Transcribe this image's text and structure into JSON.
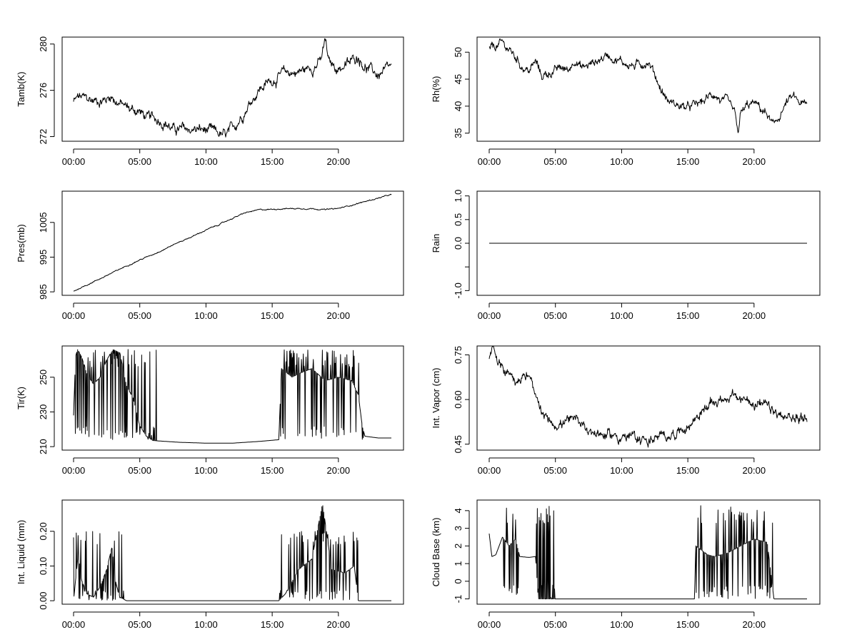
{
  "chart_data": [
    {
      "type": "line",
      "ylabel": "Tamb(K)",
      "xlabel": "",
      "x_unit": "hours",
      "xlim": [
        0,
        24
      ],
      "ylim": [
        271.6,
        280.6
      ],
      "x_ticks": [
        0,
        5,
        10,
        15,
        20
      ],
      "x_tick_labels": [
        "00:00",
        "05:00",
        "10:00",
        "15:00",
        "20:00"
      ],
      "y_ticks": [
        272,
        276,
        280
      ],
      "y_tick_labels": [
        "272",
        "276",
        "280"
      ],
      "keypoints": [
        [
          0,
          275.0
        ],
        [
          0.4,
          275.4
        ],
        [
          1.5,
          275.1
        ],
        [
          2.5,
          275.2
        ],
        [
          2.8,
          275.6
        ],
        [
          3.3,
          275.0
        ],
        [
          4.2,
          274.4
        ],
        [
          5.0,
          274.2
        ],
        [
          5.5,
          273.6
        ],
        [
          6.5,
          273.5
        ],
        [
          7.0,
          273.2
        ],
        [
          7.5,
          272.6
        ],
        [
          8.5,
          272.6
        ],
        [
          9.5,
          272.6
        ],
        [
          10.5,
          272.4
        ],
        [
          11.5,
          272.0
        ],
        [
          12.0,
          272.6
        ],
        [
          12.5,
          273.5
        ],
        [
          13.0,
          274.4
        ],
        [
          13.5,
          275.3
        ],
        [
          14.0,
          276.1
        ],
        [
          15.0,
          276.9
        ],
        [
          16.0,
          277.5
        ],
        [
          17.0,
          277.6
        ],
        [
          18.0,
          278.0
        ],
        [
          18.7,
          278.6
        ],
        [
          19.0,
          280.3
        ],
        [
          19.3,
          278.3
        ],
        [
          20.0,
          277.9
        ],
        [
          20.8,
          278.3
        ],
        [
          21.5,
          279.0
        ],
        [
          22.0,
          278.1
        ],
        [
          23.0,
          277.3
        ],
        [
          23.5,
          277.6
        ],
        [
          24.0,
          277.9
        ]
      ],
      "noise": 0.55
    },
    {
      "type": "line",
      "ylabel": "Rh(%)",
      "xlabel": "",
      "x_unit": "hours",
      "xlim": [
        0,
        24
      ],
      "ylim": [
        33.5,
        52.8
      ],
      "x_ticks": [
        0,
        5,
        10,
        15,
        20
      ],
      "x_tick_labels": [
        "00:00",
        "05:00",
        "10:00",
        "15:00",
        "20:00"
      ],
      "y_ticks": [
        35,
        40,
        45,
        50
      ],
      "y_tick_labels": [
        "35",
        "40",
        "45",
        "50"
      ],
      "keypoints": [
        [
          0,
          50.5
        ],
        [
          1.0,
          51.6
        ],
        [
          1.5,
          50.5
        ],
        [
          2.0,
          49.0
        ],
        [
          2.5,
          47.4
        ],
        [
          3.0,
          46.5
        ],
        [
          3.5,
          48.2
        ],
        [
          4.0,
          45.5
        ],
        [
          4.5,
          46.2
        ],
        [
          5.5,
          47.0
        ],
        [
          6.0,
          46.6
        ],
        [
          6.5,
          49.0
        ],
        [
          7.0,
          47.0
        ],
        [
          8.0,
          48.2
        ],
        [
          9.0,
          49.6
        ],
        [
          10.0,
          48.2
        ],
        [
          11.0,
          47.4
        ],
        [
          12.0,
          48.4
        ],
        [
          12.5,
          46.0
        ],
        [
          13.0,
          43.0
        ],
        [
          13.5,
          41.0
        ],
        [
          14.0,
          40.4
        ],
        [
          15.0,
          39.6
        ],
        [
          16.0,
          40.6
        ],
        [
          17.0,
          42.4
        ],
        [
          17.5,
          41.0
        ],
        [
          18.0,
          40.5
        ],
        [
          18.5,
          38.6
        ],
        [
          18.8,
          35.0
        ],
        [
          19.0,
          38.5
        ],
        [
          19.5,
          40.0
        ],
        [
          20.0,
          40.5
        ],
        [
          20.5,
          39.5
        ],
        [
          21.0,
          38.4
        ],
        [
          21.5,
          36.0
        ],
        [
          22.0,
          38.6
        ],
        [
          22.5,
          40.8
        ],
        [
          23.0,
          41.5
        ],
        [
          23.5,
          40.5
        ],
        [
          24.0,
          40.0
        ]
      ],
      "noise": 1.0
    },
    {
      "type": "line",
      "ylabel": "Pres(mb)",
      "xlabel": "",
      "x_unit": "hours",
      "xlim": [
        0,
        24
      ],
      "ylim": [
        984,
        1014
      ],
      "x_ticks": [
        0,
        5,
        10,
        15,
        20
      ],
      "x_tick_labels": [
        "00:00",
        "05:00",
        "10:00",
        "15:00",
        "20:00"
      ],
      "y_ticks": [
        985,
        995,
        1005
      ],
      "y_tick_labels": [
        "985",
        "995",
        "1005"
      ],
      "keypoints": [
        [
          0,
          985.2
        ],
        [
          1.0,
          987.0
        ],
        [
          2.0,
          988.8
        ],
        [
          3.0,
          990.6
        ],
        [
          4.0,
          992.5
        ],
        [
          5.0,
          994.2
        ],
        [
          6.0,
          995.8
        ],
        [
          7.0,
          997.6
        ],
        [
          8.0,
          999.4
        ],
        [
          9.0,
          1001.0
        ],
        [
          10.0,
          1002.8
        ],
        [
          11.0,
          1004.4
        ],
        [
          12.0,
          1006.2
        ],
        [
          13.0,
          1007.8
        ],
        [
          14.0,
          1008.6
        ],
        [
          15.0,
          1008.8
        ],
        [
          16.0,
          1009.0
        ],
        [
          17.0,
          1009.0
        ],
        [
          18.0,
          1009.0
        ],
        [
          19.0,
          1008.7
        ],
        [
          20.0,
          1009.0
        ],
        [
          21.0,
          1010.0
        ],
        [
          22.0,
          1011.0
        ],
        [
          23.0,
          1012.0
        ],
        [
          24.0,
          1013.0
        ]
      ],
      "noise": 0.2
    },
    {
      "type": "line",
      "ylabel": "Rain",
      "xlabel": "",
      "x_unit": "hours",
      "xlim": [
        0,
        24
      ],
      "ylim": [
        -1.1,
        1.1
      ],
      "x_ticks": [
        0,
        5,
        10,
        15,
        20
      ],
      "x_tick_labels": [
        "00:00",
        "05:00",
        "10:00",
        "15:00",
        "20:00"
      ],
      "y_ticks": [
        -1.0,
        -0.5,
        0.0,
        0.5,
        1.0
      ],
      "y_tick_labels": [
        "-1.0",
        "",
        "0.0",
        "0.5",
        "1.0"
      ],
      "keypoints": [
        [
          0,
          0
        ],
        [
          24,
          0
        ]
      ],
      "noise": 0
    },
    {
      "type": "line",
      "ylabel": "Tir(K)",
      "xlabel": "",
      "x_unit": "hours",
      "xlim": [
        0,
        24
      ],
      "ylim": [
        208,
        268
      ],
      "x_ticks": [
        0,
        5,
        10,
        15,
        20
      ],
      "x_tick_labels": [
        "00:00",
        "05:00",
        "10:00",
        "15:00",
        "20:00"
      ],
      "y_ticks": [
        210,
        230,
        250
      ],
      "y_tick_labels": [
        "210",
        "230",
        "250"
      ],
      "keypoints": [
        [
          0,
          228
        ],
        [
          0.15,
          262
        ],
        [
          0.3,
          266
        ],
        [
          0.6,
          262
        ],
        [
          1.0,
          252
        ],
        [
          1.5,
          246
        ],
        [
          2.0,
          250
        ],
        [
          2.5,
          260
        ],
        [
          3.0,
          266
        ],
        [
          3.5,
          264
        ],
        [
          4.0,
          245
        ],
        [
          4.5,
          238
        ],
        [
          5.0,
          222
        ],
        [
          5.5,
          216
        ],
        [
          6.0,
          213.5
        ],
        [
          7.0,
          213
        ],
        [
          8.0,
          212.5
        ],
        [
          10.0,
          212
        ],
        [
          12.0,
          212
        ],
        [
          14.0,
          213
        ],
        [
          15.5,
          214
        ],
        [
          15.7,
          255
        ],
        [
          16.5,
          250
        ],
        [
          17.0,
          252
        ],
        [
          18.0,
          255
        ],
        [
          19.0,
          248
        ],
        [
          20.0,
          250
        ],
        [
          21.0,
          248
        ],
        [
          21.5,
          240
        ],
        [
          21.8,
          222
        ],
        [
          22.0,
          216
        ],
        [
          23.0,
          215
        ],
        [
          24.0,
          215
        ]
      ],
      "noise": 0,
      "spiky": {
        "low": 214,
        "high": 266,
        "windows": [
          [
            0.1,
            6.5
          ],
          [
            15.6,
            21.9
          ]
        ]
      }
    },
    {
      "type": "line",
      "ylabel": "Int. Vapor (cm)",
      "xlabel": "",
      "x_unit": "hours",
      "xlim": [
        0,
        24
      ],
      "ylim": [
        0.43,
        0.78
      ],
      "x_ticks": [
        0,
        5,
        10,
        15,
        20
      ],
      "x_tick_labels": [
        "00:00",
        "05:00",
        "10:00",
        "15:00",
        "20:00"
      ],
      "y_ticks": [
        0.45,
        0.6,
        0.75
      ],
      "y_tick_labels": [
        "0.45",
        "0.60",
        "0.75"
      ],
      "keypoints": [
        [
          0,
          0.74
        ],
        [
          0.3,
          0.77
        ],
        [
          0.8,
          0.71
        ],
        [
          1.5,
          0.69
        ],
        [
          2.0,
          0.67
        ],
        [
          2.5,
          0.68
        ],
        [
          3.0,
          0.68
        ],
        [
          3.5,
          0.6
        ],
        [
          4.0,
          0.54
        ],
        [
          5.0,
          0.52
        ],
        [
          6.0,
          0.525
        ],
        [
          7.0,
          0.52
        ],
        [
          8.0,
          0.49
        ],
        [
          9.0,
          0.48
        ],
        [
          10.0,
          0.475
        ],
        [
          11.0,
          0.47
        ],
        [
          12.0,
          0.465
        ],
        [
          13.0,
          0.47
        ],
        [
          14.0,
          0.49
        ],
        [
          15.0,
          0.51
        ],
        [
          16.0,
          0.56
        ],
        [
          17.0,
          0.59
        ],
        [
          18.0,
          0.61
        ],
        [
          19.0,
          0.6
        ],
        [
          20.0,
          0.595
        ],
        [
          21.0,
          0.57
        ],
        [
          22.0,
          0.54
        ],
        [
          23.0,
          0.535
        ],
        [
          24.0,
          0.545
        ]
      ],
      "noise": 0.022
    },
    {
      "type": "line",
      "ylabel": "Int. Liquid (mm)",
      "xlabel": "",
      "x_unit": "hours",
      "xlim": [
        0,
        24
      ],
      "ylim": [
        -0.01,
        0.29
      ],
      "x_ticks": [
        0,
        5,
        10,
        15,
        20
      ],
      "x_tick_labels": [
        "00:00",
        "05:00",
        "10:00",
        "15:00",
        "20:00"
      ],
      "y_ticks": [
        0.0,
        0.1,
        0.2
      ],
      "y_tick_labels": [
        "0.00",
        "0.10",
        "0.20"
      ],
      "keypoints": [
        [
          0,
          0
        ],
        [
          0.35,
          0.135
        ],
        [
          0.6,
          0.06
        ],
        [
          1.0,
          0.02
        ],
        [
          1.5,
          0.01
        ],
        [
          2.0,
          0.04
        ],
        [
          2.5,
          0.09
        ],
        [
          2.9,
          0.155
        ],
        [
          3.2,
          0.05
        ],
        [
          3.5,
          0.01
        ],
        [
          4.0,
          0.0
        ],
        [
          5.0,
          0.0
        ],
        [
          15.5,
          0.0
        ],
        [
          16.0,
          0.02
        ],
        [
          17.0,
          0.09
        ],
        [
          18.0,
          0.12
        ],
        [
          18.8,
          0.28
        ],
        [
          19.5,
          0.09
        ],
        [
          20.5,
          0.08
        ],
        [
          21.2,
          0.1
        ],
        [
          21.5,
          0.0
        ],
        [
          24.0,
          0.0
        ]
      ],
      "noise": 0,
      "spiky": {
        "low": 0.0,
        "high": 0.2,
        "windows": [
          [
            0.0,
            3.8
          ],
          [
            15.5,
            21.5
          ]
        ]
      }
    },
    {
      "type": "line",
      "ylabel": "Cloud Base (km)",
      "xlabel": "",
      "x_unit": "hours",
      "xlim": [
        0,
        24
      ],
      "ylim": [
        -1.3,
        4.6
      ],
      "x_ticks": [
        0,
        5,
        10,
        15,
        20
      ],
      "x_tick_labels": [
        "00:00",
        "05:00",
        "10:00",
        "15:00",
        "20:00"
      ],
      "y_ticks": [
        -1,
        0,
        1,
        2,
        3,
        4
      ],
      "y_tick_labels": [
        "-1",
        "0",
        "1",
        "2",
        "3",
        "4"
      ],
      "keypoints": [
        [
          0,
          2.7
        ],
        [
          0.2,
          1.4
        ],
        [
          0.5,
          1.5
        ],
        [
          1.0,
          2.5
        ],
        [
          1.5,
          2.0
        ],
        [
          2.0,
          2.4
        ],
        [
          2.3,
          1.4
        ],
        [
          3.0,
          1.35
        ],
        [
          3.5,
          1.4
        ],
        [
          3.7,
          -1
        ],
        [
          5.0,
          -1
        ],
        [
          15.5,
          -1
        ],
        [
          15.6,
          2.0
        ],
        [
          16.5,
          1.5
        ],
        [
          17.0,
          1.4
        ],
        [
          18.0,
          1.6
        ],
        [
          19.0,
          2.0
        ],
        [
          20.0,
          2.4
        ],
        [
          21.0,
          2.2
        ],
        [
          21.5,
          -1
        ],
        [
          24.0,
          -1
        ]
      ],
      "noise": 0,
      "spiky": {
        "low": -1,
        "high": 4.3,
        "windows": [
          [
            0.7,
            2.3
          ],
          [
            3.5,
            5.0
          ],
          [
            15.6,
            21.5
          ]
        ]
      }
    }
  ]
}
